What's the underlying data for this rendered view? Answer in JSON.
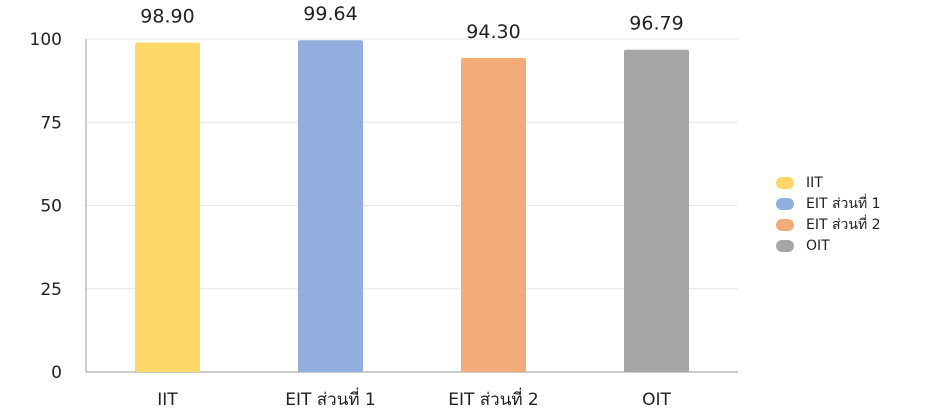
{
  "chart_data": {
    "type": "bar",
    "categories": [
      "IIT",
      "EIT ส่วนที่ 1",
      "EIT ส่วนที่ 2",
      "OIT"
    ],
    "values": [
      98.9,
      99.64,
      94.3,
      96.79
    ],
    "value_labels": [
      "98.90",
      "99.64",
      "94.30",
      "96.79"
    ],
    "colors": [
      "#FDD868",
      "#92AEDE",
      "#F4AB7A",
      "#A6A6A6"
    ],
    "yticks": [
      0,
      25,
      50,
      75,
      100
    ],
    "ylim": [
      0,
      100
    ],
    "grid": true,
    "legend_position": "right",
    "title": "",
    "xlabel": "",
    "ylabel": ""
  },
  "legend": {
    "items": [
      {
        "label": "IIT",
        "color": "#FDD868"
      },
      {
        "label": "EIT ส่วนที่ 1",
        "color": "#92AEDE"
      },
      {
        "label": "EIT ส่วนที่ 2",
        "color": "#F4AB7A"
      },
      {
        "label": "OIT",
        "color": "#A6A6A6"
      }
    ]
  }
}
